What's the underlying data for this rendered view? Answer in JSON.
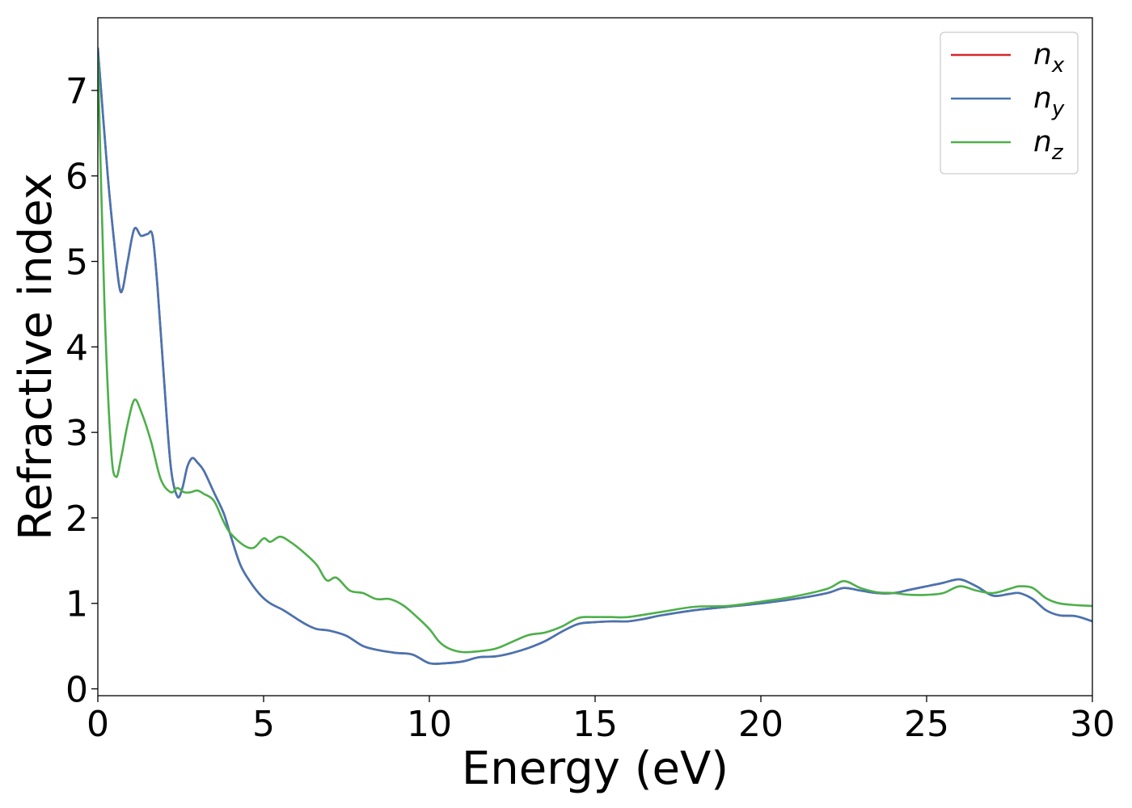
{
  "chart_data": {
    "type": "line",
    "title": "",
    "xlabel": "Energy (eV)",
    "ylabel": "Refractive index",
    "xlim": [
      0,
      30
    ],
    "ylim": [
      -0.08,
      7.85
    ],
    "xticks": [
      "0",
      "5",
      "10",
      "15",
      "20",
      "25",
      "30"
    ],
    "yticks": [
      "0",
      "1",
      "2",
      "3",
      "4",
      "5",
      "6",
      "7"
    ],
    "grid": false,
    "legend_position": "top-right",
    "series": [
      {
        "name": "n",
        "name_sub": "x",
        "color": "#d62728",
        "x": [
          0,
          0.3,
          0.5,
          0.65,
          0.75,
          0.9,
          1.1,
          1.3,
          1.5,
          1.65,
          1.8,
          2.0,
          2.2,
          2.4,
          2.55,
          2.7,
          2.85,
          3.0,
          3.2,
          3.5,
          3.8,
          4.0,
          4.3,
          4.6,
          4.9,
          5.2,
          5.6,
          6.0,
          6.3,
          6.6,
          7.0,
          7.5,
          8.0,
          8.5,
          9.0,
          9.5,
          10.0,
          10.5,
          11.0,
          11.5,
          12.0,
          12.5,
          13.0,
          13.5,
          14.0,
          14.5,
          15.0,
          15.5,
          16.0,
          16.5,
          17.0,
          18.0,
          19.0,
          20.0,
          21.0,
          22.0,
          22.5,
          23.0,
          23.5,
          24.0,
          24.5,
          25.0,
          25.5,
          26.0,
          26.5,
          27.0,
          27.5,
          27.8,
          28.2,
          28.6,
          29.0,
          29.5,
          30.0
        ],
        "values": [
          7.5,
          6.0,
          5.2,
          4.7,
          4.68,
          5.0,
          5.38,
          5.3,
          5.32,
          5.3,
          4.7,
          3.6,
          2.6,
          2.25,
          2.35,
          2.6,
          2.7,
          2.65,
          2.55,
          2.3,
          2.05,
          1.8,
          1.45,
          1.25,
          1.1,
          1.0,
          0.92,
          0.82,
          0.75,
          0.7,
          0.68,
          0.62,
          0.5,
          0.45,
          0.42,
          0.4,
          0.3,
          0.3,
          0.32,
          0.37,
          0.38,
          0.42,
          0.48,
          0.56,
          0.67,
          0.76,
          0.78,
          0.79,
          0.79,
          0.82,
          0.86,
          0.92,
          0.96,
          1.0,
          1.05,
          1.12,
          1.18,
          1.15,
          1.12,
          1.12,
          1.16,
          1.2,
          1.24,
          1.28,
          1.2,
          1.09,
          1.11,
          1.12,
          1.05,
          0.92,
          0.86,
          0.85,
          0.79
        ]
      },
      {
        "name": "n",
        "name_sub": "y",
        "color": "#4575b4",
        "x": [
          0,
          0.3,
          0.5,
          0.65,
          0.75,
          0.9,
          1.1,
          1.3,
          1.5,
          1.65,
          1.8,
          2.0,
          2.2,
          2.4,
          2.55,
          2.7,
          2.85,
          3.0,
          3.2,
          3.5,
          3.8,
          4.0,
          4.3,
          4.6,
          4.9,
          5.2,
          5.6,
          6.0,
          6.3,
          6.6,
          7.0,
          7.5,
          8.0,
          8.5,
          9.0,
          9.5,
          10.0,
          10.5,
          11.0,
          11.5,
          12.0,
          12.5,
          13.0,
          13.5,
          14.0,
          14.5,
          15.0,
          15.5,
          16.0,
          16.5,
          17.0,
          18.0,
          19.0,
          20.0,
          21.0,
          22.0,
          22.5,
          23.0,
          23.5,
          24.0,
          24.5,
          25.0,
          25.5,
          26.0,
          26.5,
          27.0,
          27.5,
          27.8,
          28.2,
          28.6,
          29.0,
          29.5,
          30.0
        ],
        "values": [
          7.5,
          6.0,
          5.2,
          4.7,
          4.68,
          5.0,
          5.38,
          5.3,
          5.32,
          5.3,
          4.7,
          3.6,
          2.6,
          2.25,
          2.35,
          2.6,
          2.7,
          2.65,
          2.55,
          2.3,
          2.05,
          1.8,
          1.45,
          1.25,
          1.1,
          1.0,
          0.92,
          0.82,
          0.75,
          0.7,
          0.68,
          0.62,
          0.5,
          0.45,
          0.42,
          0.4,
          0.3,
          0.3,
          0.32,
          0.37,
          0.38,
          0.42,
          0.48,
          0.56,
          0.67,
          0.76,
          0.78,
          0.79,
          0.79,
          0.82,
          0.86,
          0.92,
          0.96,
          1.0,
          1.05,
          1.12,
          1.18,
          1.15,
          1.12,
          1.12,
          1.16,
          1.2,
          1.24,
          1.28,
          1.2,
          1.09,
          1.11,
          1.12,
          1.05,
          0.92,
          0.86,
          0.85,
          0.79
        ]
      },
      {
        "name": "n",
        "name_sub": "z",
        "color": "#4daf4a",
        "x": [
          0,
          0.2,
          0.4,
          0.55,
          0.7,
          0.9,
          1.1,
          1.3,
          1.6,
          1.9,
          2.2,
          2.4,
          2.6,
          2.8,
          3.0,
          3.2,
          3.5,
          3.8,
          4.0,
          4.4,
          4.7,
          5.0,
          5.2,
          5.5,
          5.8,
          6.2,
          6.6,
          6.9,
          7.2,
          7.6,
          8.0,
          8.4,
          8.8,
          9.2,
          9.6,
          10.0,
          10.3,
          10.6,
          11.0,
          11.5,
          12.0,
          12.5,
          13.0,
          13.5,
          14.0,
          14.5,
          15.0,
          15.5,
          16.0,
          17.0,
          18.0,
          19.0,
          20.0,
          21.0,
          22.0,
          22.5,
          23.0,
          23.5,
          24.0,
          24.5,
          25.0,
          25.5,
          26.0,
          26.5,
          27.0,
          27.5,
          27.8,
          28.2,
          28.6,
          29.0,
          29.5,
          30.0
        ],
        "values": [
          7.4,
          4.5,
          2.8,
          2.48,
          2.7,
          3.1,
          3.38,
          3.25,
          2.9,
          2.45,
          2.3,
          2.35,
          2.3,
          2.3,
          2.32,
          2.28,
          2.2,
          1.95,
          1.82,
          1.68,
          1.65,
          1.76,
          1.72,
          1.78,
          1.72,
          1.6,
          1.45,
          1.27,
          1.3,
          1.15,
          1.12,
          1.05,
          1.05,
          0.98,
          0.85,
          0.7,
          0.55,
          0.47,
          0.43,
          0.44,
          0.47,
          0.55,
          0.63,
          0.66,
          0.73,
          0.83,
          0.84,
          0.84,
          0.84,
          0.9,
          0.96,
          0.97,
          1.02,
          1.08,
          1.17,
          1.26,
          1.18,
          1.13,
          1.12,
          1.1,
          1.1,
          1.12,
          1.2,
          1.15,
          1.12,
          1.17,
          1.2,
          1.18,
          1.06,
          1.0,
          0.98,
          0.97
        ]
      }
    ]
  }
}
